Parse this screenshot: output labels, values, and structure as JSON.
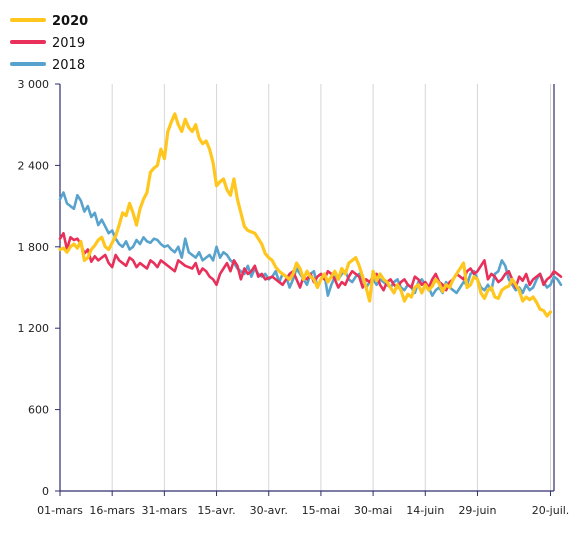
{
  "chart_data": {
    "type": "line",
    "title": "",
    "xlabel": "",
    "ylabel": "",
    "ylim": [
      0,
      3000
    ],
    "yticks": [
      0,
      600,
      1200,
      1800,
      2400,
      3000
    ],
    "ytick_labels": [
      "0",
      "600",
      "1 200",
      "1 800",
      "2 400",
      "3 000"
    ],
    "xlim": [
      "01-mars",
      "21-juil."
    ],
    "xtick_labels": [
      "01-mars",
      "16-mars",
      "31-mars",
      "15-avr.",
      "30-avr.",
      "15-mai",
      "30-mai",
      "14-juin",
      "29-juin",
      "20-juil."
    ],
    "xtick_days": [
      0,
      15,
      30,
      45,
      60,
      75,
      90,
      105,
      120,
      141
    ],
    "grid": "vertical",
    "legend_placement": "top-left",
    "series": [
      {
        "name": "2020",
        "bold": true,
        "color": "#ffc61e",
        "values": [
          1780,
          1790,
          1760,
          1800,
          1820,
          1790,
          1840,
          1700,
          1720,
          1780,
          1810,
          1850,
          1870,
          1800,
          1780,
          1830,
          1880,
          1960,
          2050,
          2030,
          2120,
          2050,
          1960,
          2080,
          2150,
          2200,
          2350,
          2380,
          2400,
          2520,
          2450,
          2650,
          2720,
          2780,
          2700,
          2650,
          2740,
          2680,
          2650,
          2700,
          2600,
          2560,
          2580,
          2520,
          2420,
          2250,
          2280,
          2300,
          2220,
          2180,
          2300,
          2150,
          2050,
          1950,
          1920,
          1910,
          1900,
          1860,
          1820,
          1750,
          1720,
          1700,
          1650,
          1620,
          1600,
          1580,
          1560,
          1600,
          1680,
          1640,
          1560,
          1620,
          1580,
          1560,
          1500,
          1560,
          1600,
          1540,
          1580,
          1620,
          1560,
          1640,
          1600,
          1680,
          1700,
          1720,
          1660,
          1580,
          1500,
          1400,
          1620,
          1550,
          1600,
          1560,
          1540,
          1500,
          1460,
          1520,
          1480,
          1400,
          1450,
          1430,
          1500,
          1520,
          1460,
          1520,
          1480,
          1510,
          1560,
          1530,
          1470,
          1520,
          1500,
          1560,
          1600,
          1640,
          1680,
          1500,
          1520,
          1580,
          1560,
          1460,
          1420,
          1480,
          1500,
          1430,
          1420,
          1480,
          1500,
          1510,
          1560,
          1520,
          1480,
          1400,
          1430,
          1410,
          1430,
          1390,
          1340,
          1330,
          1290,
          1320
        ]
      },
      {
        "name": "2019",
        "bold": false,
        "color": "#e8305a",
        "values": [
          1860,
          1900,
          1780,
          1870,
          1850,
          1860,
          1820,
          1750,
          1780,
          1690,
          1730,
          1700,
          1720,
          1740,
          1680,
          1650,
          1740,
          1700,
          1680,
          1660,
          1720,
          1700,
          1650,
          1680,
          1660,
          1640,
          1700,
          1680,
          1650,
          1700,
          1680,
          1660,
          1640,
          1620,
          1700,
          1680,
          1660,
          1650,
          1640,
          1680,
          1600,
          1640,
          1620,
          1580,
          1560,
          1520,
          1600,
          1640,
          1680,
          1620,
          1700,
          1660,
          1560,
          1640,
          1600,
          1620,
          1660,
          1580,
          1600,
          1560,
          1570,
          1580,
          1560,
          1540,
          1520,
          1560,
          1600,
          1620,
          1560,
          1500,
          1580,
          1560,
          1600,
          1540,
          1580,
          1600,
          1560,
          1620,
          1600,
          1560,
          1500,
          1540,
          1520,
          1580,
          1620,
          1600,
          1580,
          1500,
          1560,
          1540,
          1580,
          1600,
          1520,
          1480,
          1540,
          1560,
          1520,
          1500,
          1540,
          1560,
          1520,
          1500,
          1580,
          1560,
          1520,
          1540,
          1500,
          1560,
          1600,
          1540,
          1520,
          1480,
          1540,
          1560,
          1600,
          1580,
          1560,
          1620,
          1640,
          1600,
          1620,
          1660,
          1700,
          1560,
          1600,
          1580,
          1540,
          1560,
          1600,
          1620,
          1560,
          1500,
          1580,
          1550,
          1600,
          1520,
          1560,
          1580,
          1600,
          1520,
          1560,
          1580,
          1620,
          1600,
          1580
        ]
      },
      {
        "name": "2018",
        "bold": false,
        "color": "#58a3cd",
        "values": [
          2150,
          2200,
          2120,
          2100,
          2080,
          2180,
          2140,
          2060,
          2100,
          2020,
          2050,
          1960,
          2000,
          1950,
          1900,
          1920,
          1860,
          1820,
          1800,
          1840,
          1780,
          1800,
          1850,
          1820,
          1870,
          1840,
          1830,
          1860,
          1850,
          1820,
          1800,
          1810,
          1780,
          1760,
          1800,
          1720,
          1860,
          1760,
          1740,
          1720,
          1760,
          1700,
          1720,
          1740,
          1700,
          1800,
          1720,
          1760,
          1740,
          1700,
          1680,
          1640,
          1620,
          1600,
          1660,
          1580,
          1640,
          1600,
          1580,
          1600,
          1560,
          1580,
          1620,
          1540,
          1600,
          1580,
          1500,
          1560,
          1640,
          1600,
          1560,
          1520,
          1600,
          1620,
          1500,
          1560,
          1600,
          1440,
          1520,
          1580,
          1560,
          1600,
          1620,
          1560,
          1540,
          1580,
          1600,
          1560,
          1500,
          1540,
          1560,
          1520,
          1560,
          1540,
          1520,
          1500,
          1540,
          1560,
          1500,
          1480,
          1520,
          1500,
          1460,
          1540,
          1560,
          1520,
          1500,
          1440,
          1480,
          1500,
          1460,
          1540,
          1500,
          1480,
          1460,
          1500,
          1540,
          1520,
          1600,
          1620,
          1560,
          1500,
          1480,
          1520,
          1480,
          1600,
          1620,
          1700,
          1660,
          1560,
          1520,
          1480,
          1500,
          1460,
          1520,
          1480,
          1500,
          1560,
          1600,
          1540,
          1500,
          1520,
          1580,
          1560,
          1520
        ]
      }
    ]
  }
}
